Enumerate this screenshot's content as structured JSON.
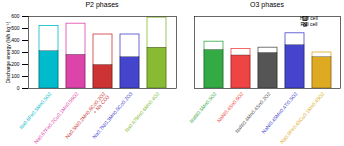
{
  "chart_data": [
    {
      "type": "bar",
      "title": "P2 phases",
      "categories": [
        "Na0.6Fe0.5Mn0.5O2",
        "Na0.67Fe0.2Cu0.1Mn0.56O2",
        "Na0.5Ni0.2Mn0.6Co0.2O2\n+ Na CO3",
        "Na0.7Ni0.3Mn0.5Co0.2O3",
        "Na0.67Mn0.6Mn0.4O2"
      ],
      "series": [
        {
          "name": "Half cell",
          "color": "white",
          "values": [
            520,
            540,
            450,
            450,
            590
          ]
        },
        {
          "name": "Full cell",
          "color": "darkgray",
          "values": [
            310,
            280,
            195,
            260,
            340
          ]
        }
      ],
      "colors": [
        "#00bbcc",
        "#dd44aa",
        "#cc3333",
        "#4444cc",
        "#88bb33"
      ],
      "ylabel": "Discharge energy (Wh kg⁻¹)",
      "ylim": [
        0,
        600
      ],
      "yticks": [
        0,
        100,
        200,
        300,
        400,
        500,
        600
      ],
      "grid": false
    },
    {
      "type": "bar",
      "title": "O3 phases",
      "categories": [
        "NaNi0.5Mn0.5O2",
        "NaNi0.4Sn0.6O2",
        "NaNi0.4Mn0.4Sn0.2O2",
        "NaNi0.45Mn0.4Ti0.5O2",
        "Na0.9Fe0.45Cu0.1Mn0.45O2"
      ],
      "series": [
        {
          "name": "Half cell",
          "color": "white",
          "values": [
            390,
            330,
            340,
            460,
            300
          ]
        },
        {
          "name": "Full cell",
          "color": "darkgray",
          "values": [
            320,
            275,
            295,
            360,
            260
          ]
        }
      ],
      "colors": [
        "#33aa44",
        "#ee4444",
        "#555555",
        "#4444cc",
        "#ddaa22"
      ],
      "ylim": [
        0,
        600
      ],
      "tick_labels": "x",
      "legend": "upper right",
      "grid": false
    }
  ]
}
